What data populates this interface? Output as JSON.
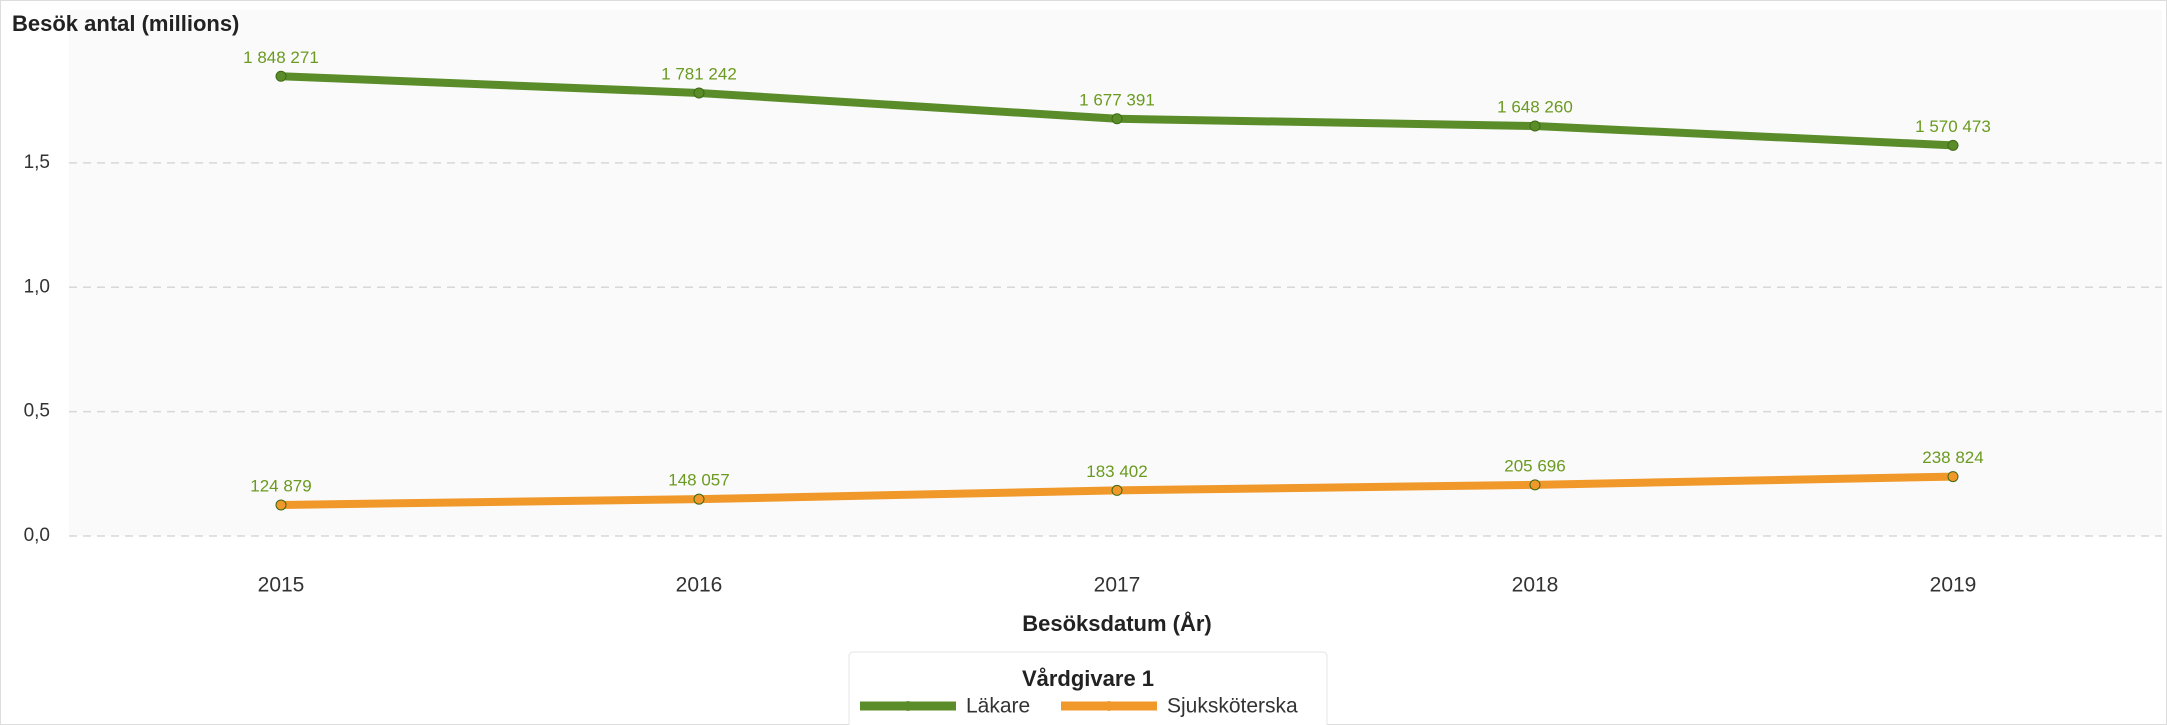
{
  "chart_data": {
    "type": "line",
    "title": "Besök antal (millions)",
    "x_label": "Besöksdatum (År)",
    "categories": [
      "2015",
      "2016",
      "2017",
      "2018",
      "2019"
    ],
    "series": [
      {
        "name": "Läkare",
        "color": "#5b8c2a",
        "values": [
          1.848271,
          1.781242,
          1.677391,
          1.64826,
          1.570473
        ],
        "value_labels": [
          "1 848 271",
          "1 781 242",
          "1 677 391",
          "1 648 260",
          "1 570 473"
        ]
      },
      {
        "name": "Sjuksköterska",
        "color": "#f0982a",
        "values": [
          0.124879,
          0.148057,
          0.183402,
          0.205696,
          0.238824
        ],
        "value_labels": [
          "124 879",
          "148 057",
          "183 402",
          "205 696",
          "238 824"
        ]
      }
    ],
    "ylim": [
      0,
      1.97
    ],
    "yticks": [
      {
        "value": 0,
        "label": "0,0"
      },
      {
        "value": 0.5,
        "label": "0,5"
      },
      {
        "value": 1,
        "label": "1,0"
      },
      {
        "value": 1.5,
        "label": "1,5"
      }
    ],
    "grid": true,
    "legend": {
      "title": "Vårdgivare 1",
      "position": "bottom"
    },
    "label_color": "#6a9a1f"
  }
}
